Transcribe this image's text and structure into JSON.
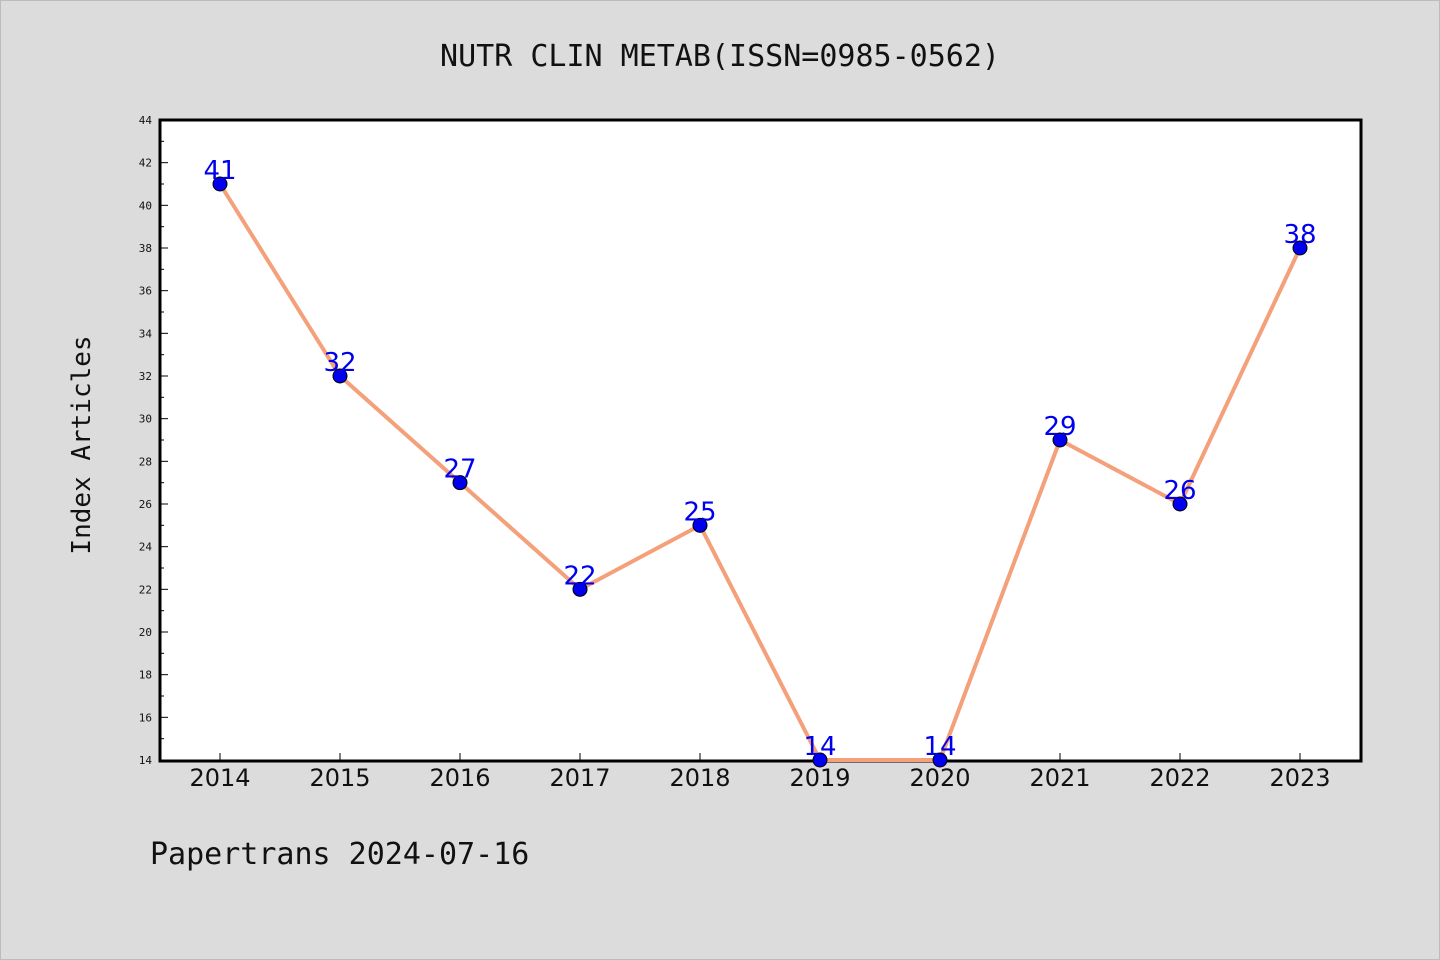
{
  "chart_data": {
    "type": "line",
    "title": "NUTR CLIN METAB(ISSN=0985-0562)",
    "xlabel": "",
    "ylabel": "Index Articles",
    "categories": [
      "2014",
      "2015",
      "2016",
      "2017",
      "2018",
      "2019",
      "2020",
      "2021",
      "2022",
      "2023"
    ],
    "series": [
      {
        "values": [
          41,
          32,
          27,
          22,
          25,
          14,
          14,
          29,
          26,
          38
        ]
      }
    ],
    "ylim": [
      14,
      44
    ],
    "yticks": [
      "14",
      "16",
      "18",
      "20",
      "22",
      "24",
      "26",
      "28",
      "30",
      "32",
      "34",
      "36",
      "38",
      "40",
      "42",
      "44"
    ],
    "grid": false,
    "line_color": "#f4a07a",
    "marker_color": "#0000ee",
    "label_color": "#0000ee",
    "footer": "Papertrans 2024-07-16"
  }
}
